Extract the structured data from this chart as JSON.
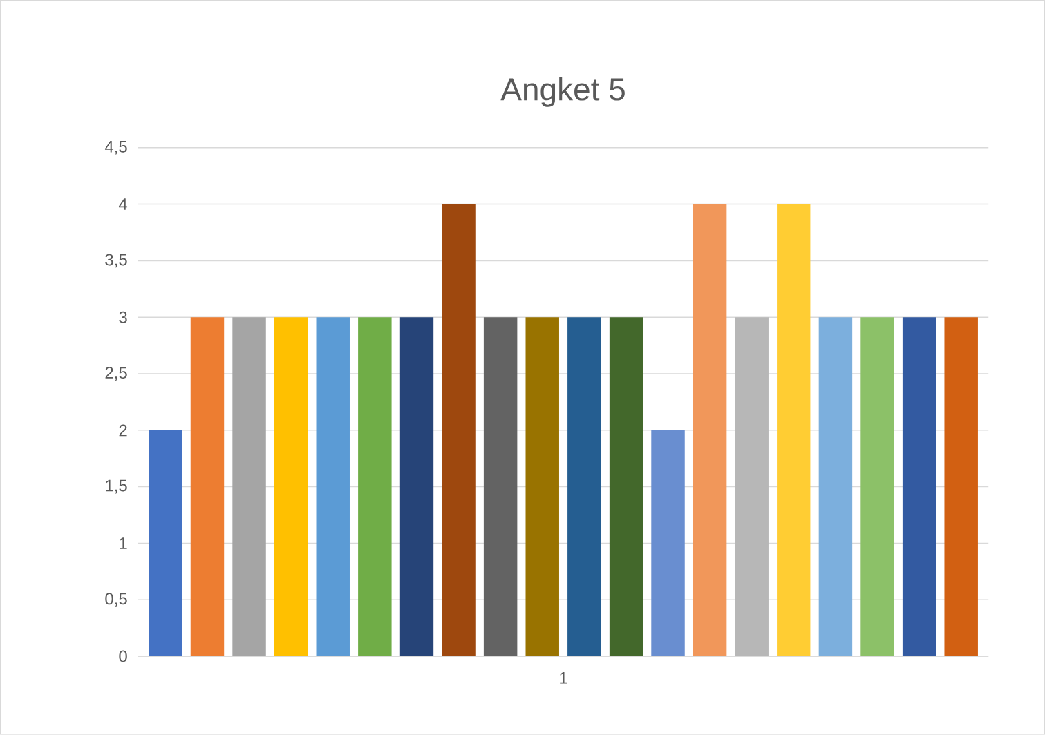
{
  "chart_data": {
    "type": "bar",
    "title": "Angket 5",
    "categories": [
      "1"
    ],
    "series": [
      {
        "color": "#4472c4",
        "values": [
          2
        ]
      },
      {
        "color": "#ed7d31",
        "values": [
          3
        ]
      },
      {
        "color": "#a5a5a5",
        "values": [
          3
        ]
      },
      {
        "color": "#ffc000",
        "values": [
          3
        ]
      },
      {
        "color": "#5b9bd5",
        "values": [
          3
        ]
      },
      {
        "color": "#70ad47",
        "values": [
          3
        ]
      },
      {
        "color": "#264478",
        "values": [
          3
        ]
      },
      {
        "color": "#9e480e",
        "values": [
          4
        ]
      },
      {
        "color": "#636363",
        "values": [
          3
        ]
      },
      {
        "color": "#997300",
        "values": [
          3
        ]
      },
      {
        "color": "#255e91",
        "values": [
          3
        ]
      },
      {
        "color": "#43682b",
        "values": [
          3
        ]
      },
      {
        "color": "#698ed0",
        "values": [
          2
        ]
      },
      {
        "color": "#f1975a",
        "values": [
          4
        ]
      },
      {
        "color": "#b7b7b7",
        "values": [
          3
        ]
      },
      {
        "color": "#ffcd33",
        "values": [
          4
        ]
      },
      {
        "color": "#7cafdd",
        "values": [
          3
        ]
      },
      {
        "color": "#8cc168",
        "values": [
          3
        ]
      },
      {
        "color": "#335aa1",
        "values": [
          3
        ]
      },
      {
        "color": "#d26012",
        "values": [
          3
        ]
      }
    ],
    "ylim": [
      0,
      4.5
    ],
    "yticks": [
      0,
      {
        "value": 0.5,
        "label": "0,5"
      },
      1,
      {
        "value": 1.5,
        "label": "1,5"
      },
      2,
      {
        "value": 2.5,
        "label": "2,5"
      },
      3,
      {
        "value": 3.5,
        "label": "3,5"
      },
      4,
      {
        "value": 4.5,
        "label": "4,5"
      }
    ],
    "grid": "y"
  }
}
